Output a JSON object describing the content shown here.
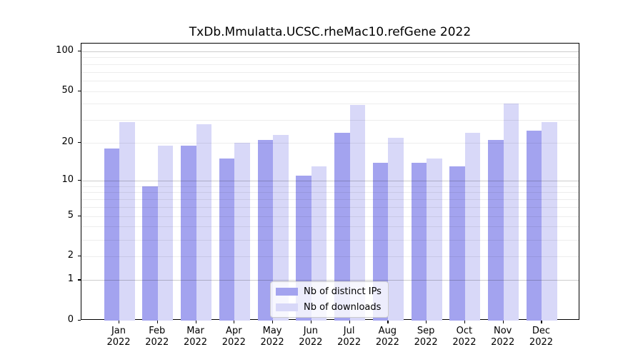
{
  "chart_data": {
    "type": "bar",
    "title": "TxDb.Mmulatta.UCSC.rheMac10.refGene 2022",
    "categories": [
      "Jan",
      "Feb",
      "Mar",
      "Apr",
      "May",
      "Jun",
      "Jul",
      "Aug",
      "Sep",
      "Oct",
      "Nov",
      "Dec"
    ],
    "x_year_line": "2022",
    "series": [
      {
        "name": "Nb of distinct IPs",
        "color": "#a3a3ef",
        "values": [
          18,
          9,
          19,
          15,
          21,
          11,
          24,
          14,
          14,
          13,
          21,
          25
        ]
      },
      {
        "name": "Nb of downloads",
        "color": "#d8d8f8",
        "values": [
          29,
          19,
          28,
          20,
          23,
          13,
          39,
          22,
          15,
          24,
          40,
          29
        ]
      }
    ],
    "xlabel": "",
    "ylabel": "",
    "yscale": "log1p",
    "ylim": [
      0,
      100
    ],
    "y_ticks": [
      0,
      1,
      2,
      5,
      10,
      20,
      50,
      100
    ],
    "y_major_gridlines": [
      1,
      10,
      100
    ],
    "y_minor_gridlines": [
      2,
      3,
      4,
      5,
      6,
      7,
      8,
      9,
      20,
      30,
      40,
      50,
      60,
      70,
      80,
      90
    ],
    "grid": "on",
    "legend_position": "lower center"
  }
}
